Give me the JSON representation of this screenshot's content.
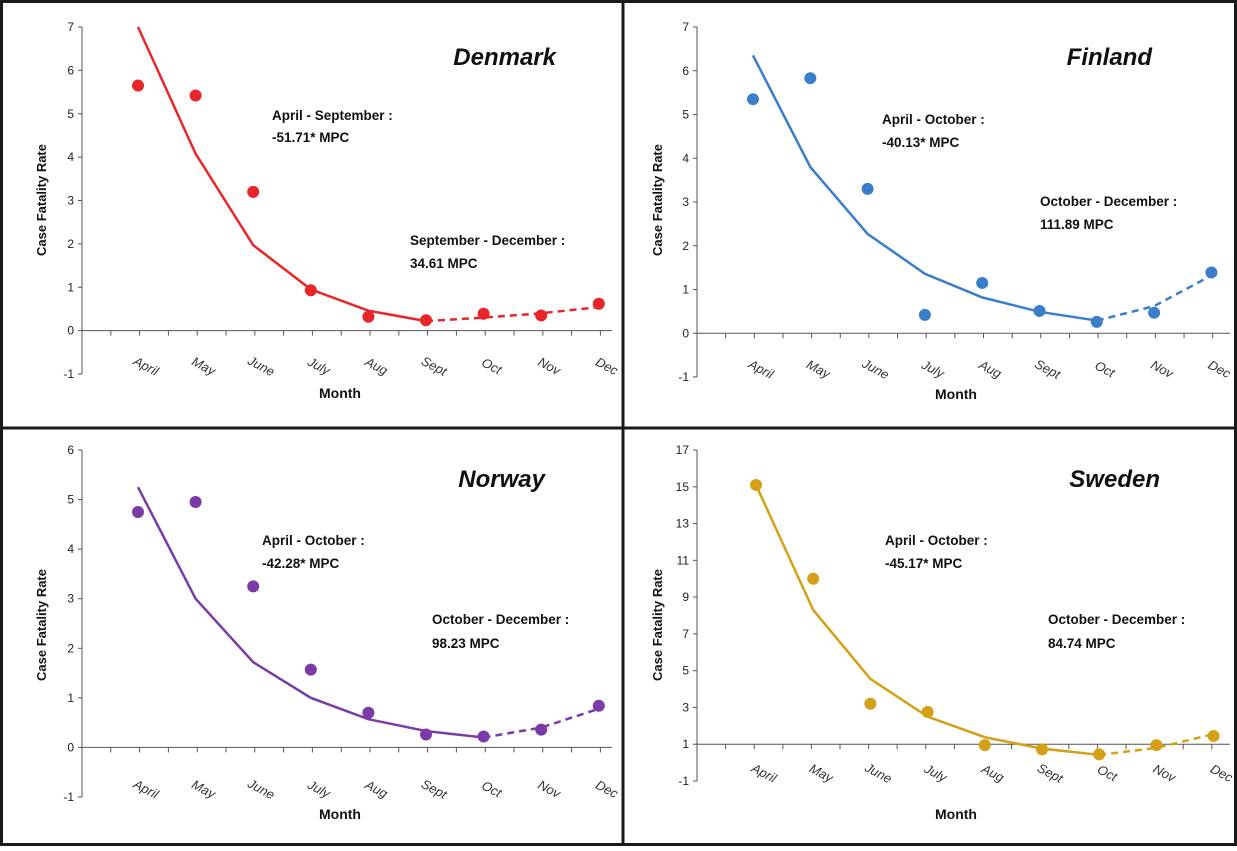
{
  "chart_data": [
    {
      "type": "scatter",
      "title": "Denmark",
      "color": "#e8262a",
      "xlabel": "Month",
      "ylabel": "Case Fatality Rate",
      "categories": [
        "April",
        "May",
        "June",
        "July",
        "Aug",
        "Sept",
        "Oct",
        "Nov",
        "Dec"
      ],
      "ylim": [
        -1,
        7
      ],
      "yticks": [
        -1,
        0,
        1,
        2,
        3,
        4,
        5,
        6,
        7
      ],
      "observed": [
        5.65,
        5.42,
        3.2,
        0.93,
        0.32,
        0.24,
        0.39,
        0.35,
        0.62
      ],
      "fitted": [
        7.0,
        4.08,
        1.97,
        0.95,
        0.46,
        0.22,
        0.3,
        0.4,
        0.54
      ],
      "break_index": 5,
      "annotations": [
        {
          "line1": "April - September :",
          "line2": "-51.71* MPC"
        },
        {
          "line1": "September - December :",
          "line2": "34.61 MPC"
        }
      ]
    },
    {
      "type": "scatter",
      "title": "Finland",
      "color": "#3a7dc9",
      "xlabel": "Month",
      "ylabel": "Case Fatality Rate",
      "categories": [
        "April",
        "May",
        "June",
        "July",
        "Aug",
        "Sept",
        "Oct",
        "Nov",
        "Dec"
      ],
      "ylim": [
        -1,
        7
      ],
      "yticks": [
        -1,
        0,
        1,
        2,
        3,
        4,
        5,
        6,
        7
      ],
      "observed": [
        5.35,
        5.83,
        3.3,
        0.42,
        1.15,
        0.51,
        0.26,
        0.47,
        1.39
      ],
      "fitted": [
        6.35,
        3.8,
        2.27,
        1.36,
        0.82,
        0.49,
        0.29,
        0.62,
        1.32
      ],
      "break_index": 6,
      "annotations": [
        {
          "line1": "April - October :",
          "line2": "-40.13* MPC"
        },
        {
          "line1": "October - December :",
          "line2": "111.89 MPC"
        }
      ]
    },
    {
      "type": "scatter",
      "title": "Norway",
      "color": "#7a3aa8",
      "xlabel": "Month",
      "ylabel": "Case Fatality Rate",
      "categories": [
        "April",
        "May",
        "June",
        "July",
        "Aug",
        "Sept",
        "Oct",
        "Nov",
        "Dec"
      ],
      "ylim": [
        -1,
        6
      ],
      "yticks": [
        -1,
        0,
        1,
        2,
        3,
        4,
        5,
        6
      ],
      "observed": [
        4.75,
        4.95,
        3.25,
        1.57,
        0.7,
        0.26,
        0.22,
        0.36,
        0.84
      ],
      "fitted": [
        5.25,
        3.0,
        1.72,
        1.0,
        0.57,
        0.33,
        0.2,
        0.4,
        0.78
      ],
      "break_index": 6,
      "annotations": [
        {
          "line1": "April - October :",
          "line2": "-42.28* MPC"
        },
        {
          "line1": "October - December :",
          "line2": "98.23 MPC"
        }
      ]
    },
    {
      "type": "scatter",
      "title": "Sweden",
      "color": "#d4a017",
      "xlabel": "Month",
      "ylabel": "Case Fatality Rate",
      "categories": [
        "April",
        "May",
        "June",
        "July",
        "Aug",
        "Sept",
        "Oct",
        "Nov",
        "Dec"
      ],
      "ylim": [
        -1,
        17
      ],
      "yticks": [
        -1,
        1,
        3,
        5,
        7,
        9,
        11,
        13,
        15,
        17
      ],
      "observed": [
        15.1,
        10.0,
        3.2,
        2.75,
        0.95,
        0.72,
        0.45,
        0.95,
        1.45
      ],
      "fitted": [
        15.1,
        8.3,
        4.55,
        2.5,
        1.38,
        0.76,
        0.42,
        0.8,
        1.55
      ],
      "break_index": 6,
      "annotations": [
        {
          "line1": "April - October :",
          "line2": "-45.17* MPC"
        },
        {
          "line1": "October - December :",
          "line2": "84.74 MPC"
        }
      ]
    }
  ]
}
